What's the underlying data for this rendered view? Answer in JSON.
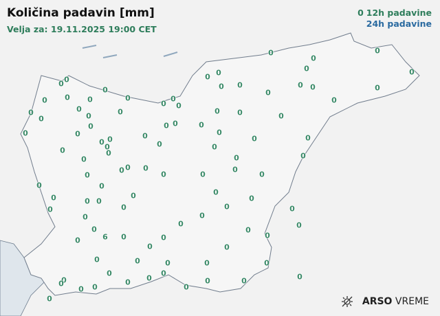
{
  "header": {
    "title": "Količina padavin [mm]",
    "valid_for": "Velja za: 19.11.2025 19:00 CET"
  },
  "legend": {
    "marker": "0",
    "label_12h": "12h padavine",
    "label_24h": "24h padavine",
    "color_12h": "#2e7d5b",
    "color_24h": "#2a6aa0"
  },
  "stations": {
    "unit": "mm",
    "period": "12h",
    "values": [
      "0",
      "0",
      "0",
      "0",
      "0",
      "0",
      "0",
      "0",
      "0",
      "0",
      "0",
      "0",
      "0",
      "0",
      "0",
      "0",
      "0",
      "0",
      "0",
      "0",
      "0",
      "0",
      "0",
      "0",
      "0",
      "0",
      "0",
      "0",
      "0",
      "0",
      "0",
      "0",
      "0",
      "0",
      "0",
      "0",
      "0",
      "0",
      "0",
      "0",
      "0",
      "0",
      "0",
      "0",
      "0",
      "0",
      "0",
      "0",
      "0",
      "0",
      "0",
      "0",
      "0",
      "0",
      "0",
      "0",
      "0",
      "0",
      "0",
      "0",
      "0",
      "0",
      "0",
      "0",
      "0",
      "0",
      "0",
      "0",
      "0",
      "0",
      "0",
      "0",
      "0",
      "0",
      "0",
      "0",
      "0",
      "6",
      "0",
      "0",
      "0",
      "0",
      "0",
      "0",
      "0",
      "0",
      "0",
      "0",
      "0",
      "0",
      "0",
      "0",
      "0",
      "0",
      "0",
      "0",
      "0",
      "0",
      "0",
      "0",
      "0",
      "0",
      "0"
    ]
  },
  "logo": {
    "brand": "ARSO",
    "product": "VREME",
    "icon": "sun-weather-icon"
  }
}
